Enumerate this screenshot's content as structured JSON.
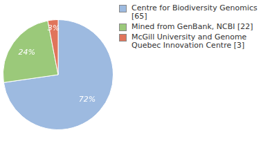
{
  "chart_data": {
    "type": "pie",
    "categories": [
      "Centre for Biodiversity Genomics [65]",
      "Mined from GenBank, NCBI [22]",
      "McGill University and Genome Quebec Innovation Centre [3]"
    ],
    "values": [
      72,
      24,
      3
    ],
    "value_labels": [
      "72%",
      "24%",
      "3%"
    ],
    "colors": [
      "#9dbae0",
      "#9bc97a",
      "#e0745b"
    ],
    "data_labels": true,
    "legend": "top right"
  }
}
